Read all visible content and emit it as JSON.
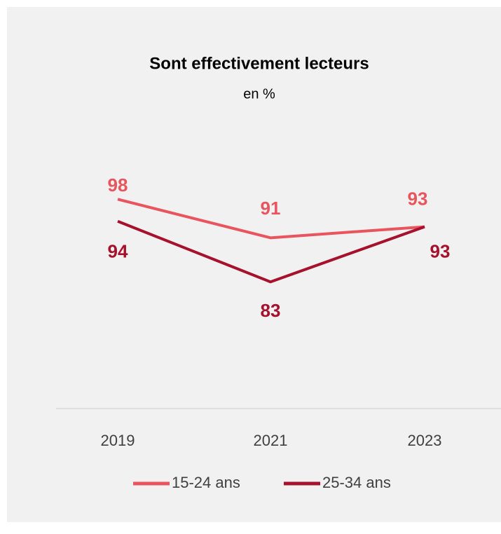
{
  "chart_data": {
    "type": "line",
    "title": "Sont effectivement lecteurs",
    "subtitle": "en %",
    "categories": [
      "2019",
      "2021",
      "2023"
    ],
    "series": [
      {
        "name": "15-24 ans",
        "color": "#e8555e",
        "values": [
          98,
          91,
          93
        ]
      },
      {
        "name": "25-34 ans",
        "color": "#a6122d",
        "values": [
          94,
          83,
          93
        ]
      }
    ],
    "ylim": [
      60,
      110
    ],
    "legend": "bottom"
  }
}
